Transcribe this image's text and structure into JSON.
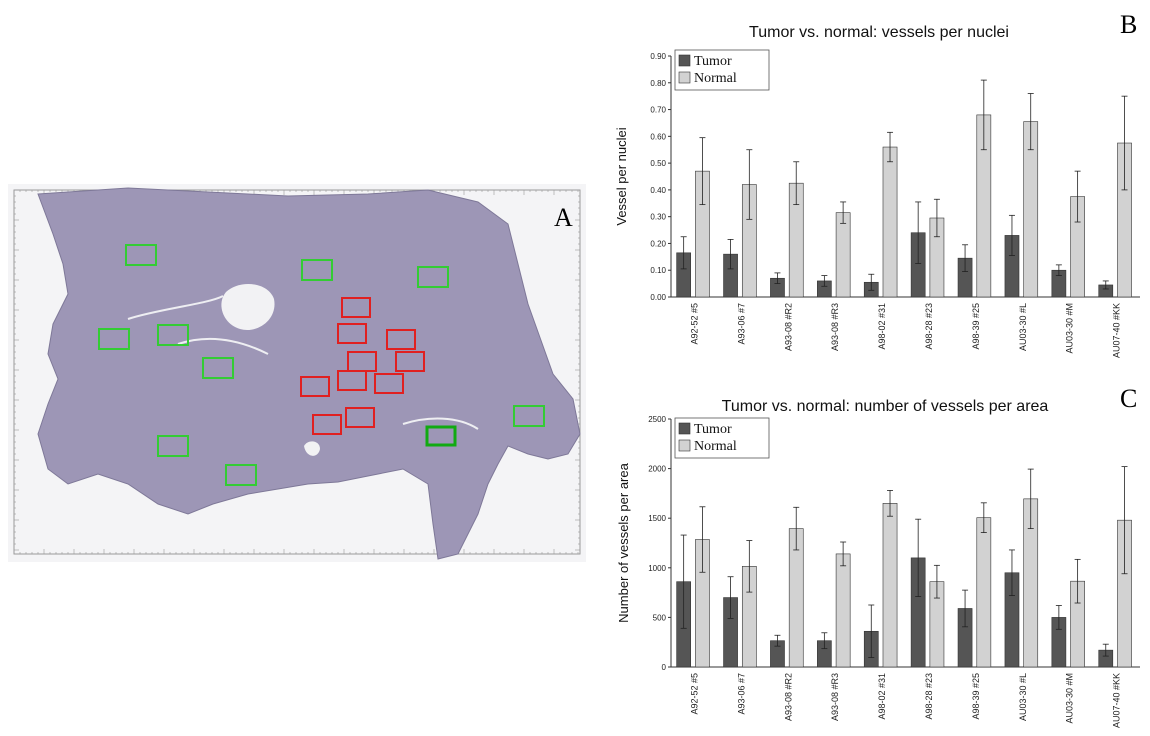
{
  "panel_a": {
    "letter": "A",
    "green_regions": 10,
    "red_regions": 10
  },
  "colors": {
    "tumor": "#555555",
    "normal": "#d2d2d2",
    "green_box": "#33cc33",
    "red_box": "#e02020",
    "tissue": "#9a93b4"
  },
  "chart_data": [
    {
      "letter": "B",
      "type": "bar",
      "title": "Tumor vs. normal: vessels per nuclei",
      "xlabel": "",
      "ylabel": "Vessel per nuclei",
      "ylim": [
        0,
        0.9
      ],
      "yticks": [
        "0.00",
        "0.10",
        "0.20",
        "0.30",
        "0.40",
        "0.50",
        "0.60",
        "0.70",
        "0.80",
        "0.90"
      ],
      "legend_position": "top-left",
      "categories": [
        "A92-52 #5",
        "A93-06 #7",
        "A93-08 #R2",
        "A93-08 #R3",
        "A98-02 #31",
        "A98-28 #23",
        "A98-39 #25",
        "AU03-30 #L",
        "AU03-30 #M",
        "AU07-40 #KK"
      ],
      "series": [
        {
          "name": "Tumor",
          "values": [
            0.165,
            0.16,
            0.07,
            0.06,
            0.055,
            0.24,
            0.145,
            0.23,
            0.1,
            0.045
          ],
          "errors": [
            0.06,
            0.055,
            0.02,
            0.02,
            0.03,
            0.115,
            0.05,
            0.075,
            0.02,
            0.015
          ]
        },
        {
          "name": "Normal",
          "values": [
            0.47,
            0.42,
            0.425,
            0.315,
            0.56,
            0.295,
            0.68,
            0.655,
            0.375,
            0.575
          ],
          "errors": [
            0.125,
            0.13,
            0.08,
            0.04,
            0.055,
            0.07,
            0.13,
            0.105,
            0.095,
            0.175
          ]
        }
      ]
    },
    {
      "letter": "C",
      "type": "bar",
      "title": "Tumor vs. normal: number of vessels per area",
      "xlabel": "",
      "ylabel": "Number of vessels per area",
      "ylim": [
        0,
        2500
      ],
      "yticks": [
        "0",
        "500",
        "1000",
        "1500",
        "2000",
        "2500"
      ],
      "legend_position": "top-left",
      "categories": [
        "A92-52 #5",
        "A93-06 #7",
        "A93-08 #R2",
        "A93-08 #R3",
        "A98-02 #31",
        "A98-28 #23",
        "A98-39 #25",
        "AU03-30 #L",
        "AU03-30 #M",
        "AU07-40 #KK"
      ],
      "series": [
        {
          "name": "Tumor",
          "values": [
            860,
            700,
            265,
            265,
            360,
            1100,
            590,
            950,
            500,
            170
          ],
          "errors": [
            470,
            210,
            55,
            80,
            265,
            390,
            185,
            230,
            120,
            60
          ]
        },
        {
          "name": "Normal",
          "values": [
            1285,
            1015,
            1395,
            1140,
            1650,
            860,
            1505,
            1695,
            865,
            1480
          ],
          "errors": [
            330,
            260,
            215,
            120,
            130,
            165,
            150,
            300,
            220,
            540
          ]
        }
      ]
    }
  ]
}
